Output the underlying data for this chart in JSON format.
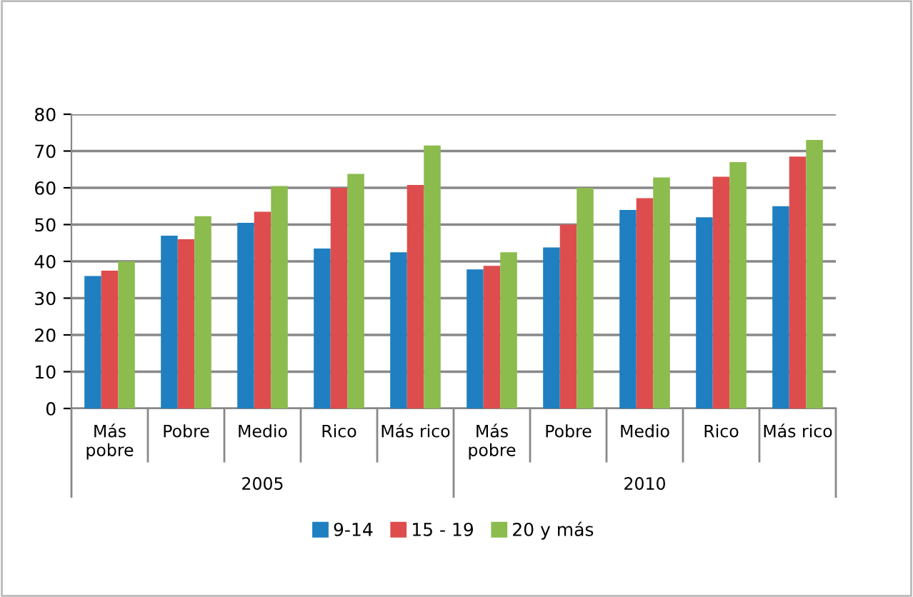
{
  "chart_data": {
    "type": "bar",
    "categories": [
      "Más\npobre",
      "Pobre",
      "Medio",
      "Rico",
      "Más rico",
      "Más\npobre",
      "Pobre",
      "Medio",
      "Rico",
      "Más rico"
    ],
    "series": [
      {
        "name": "9-14",
        "color": "#1f7fc0",
        "values": [
          36,
          47,
          50.5,
          43.5,
          42.5,
          37.8,
          43.8,
          54,
          52,
          55
        ]
      },
      {
        "name": "15 - 19",
        "color": "#de4d4d",
        "values": [
          37.5,
          46,
          53.5,
          60,
          60.8,
          38.8,
          50,
          57.2,
          63,
          68.5
        ]
      },
      {
        "name": "20 y más",
        "color": "#8cbb4e",
        "values": [
          40,
          52.3,
          60.5,
          63.8,
          71.5,
          42.5,
          60,
          62.8,
          67,
          73
        ]
      }
    ],
    "annotations": [
      "2005",
      "2010"
    ],
    "ylim": [
      0,
      80
    ],
    "yticks": [
      0,
      10,
      20,
      30,
      40,
      50,
      60,
      70,
      80
    ],
    "grid": "y",
    "legend": "bottom"
  }
}
